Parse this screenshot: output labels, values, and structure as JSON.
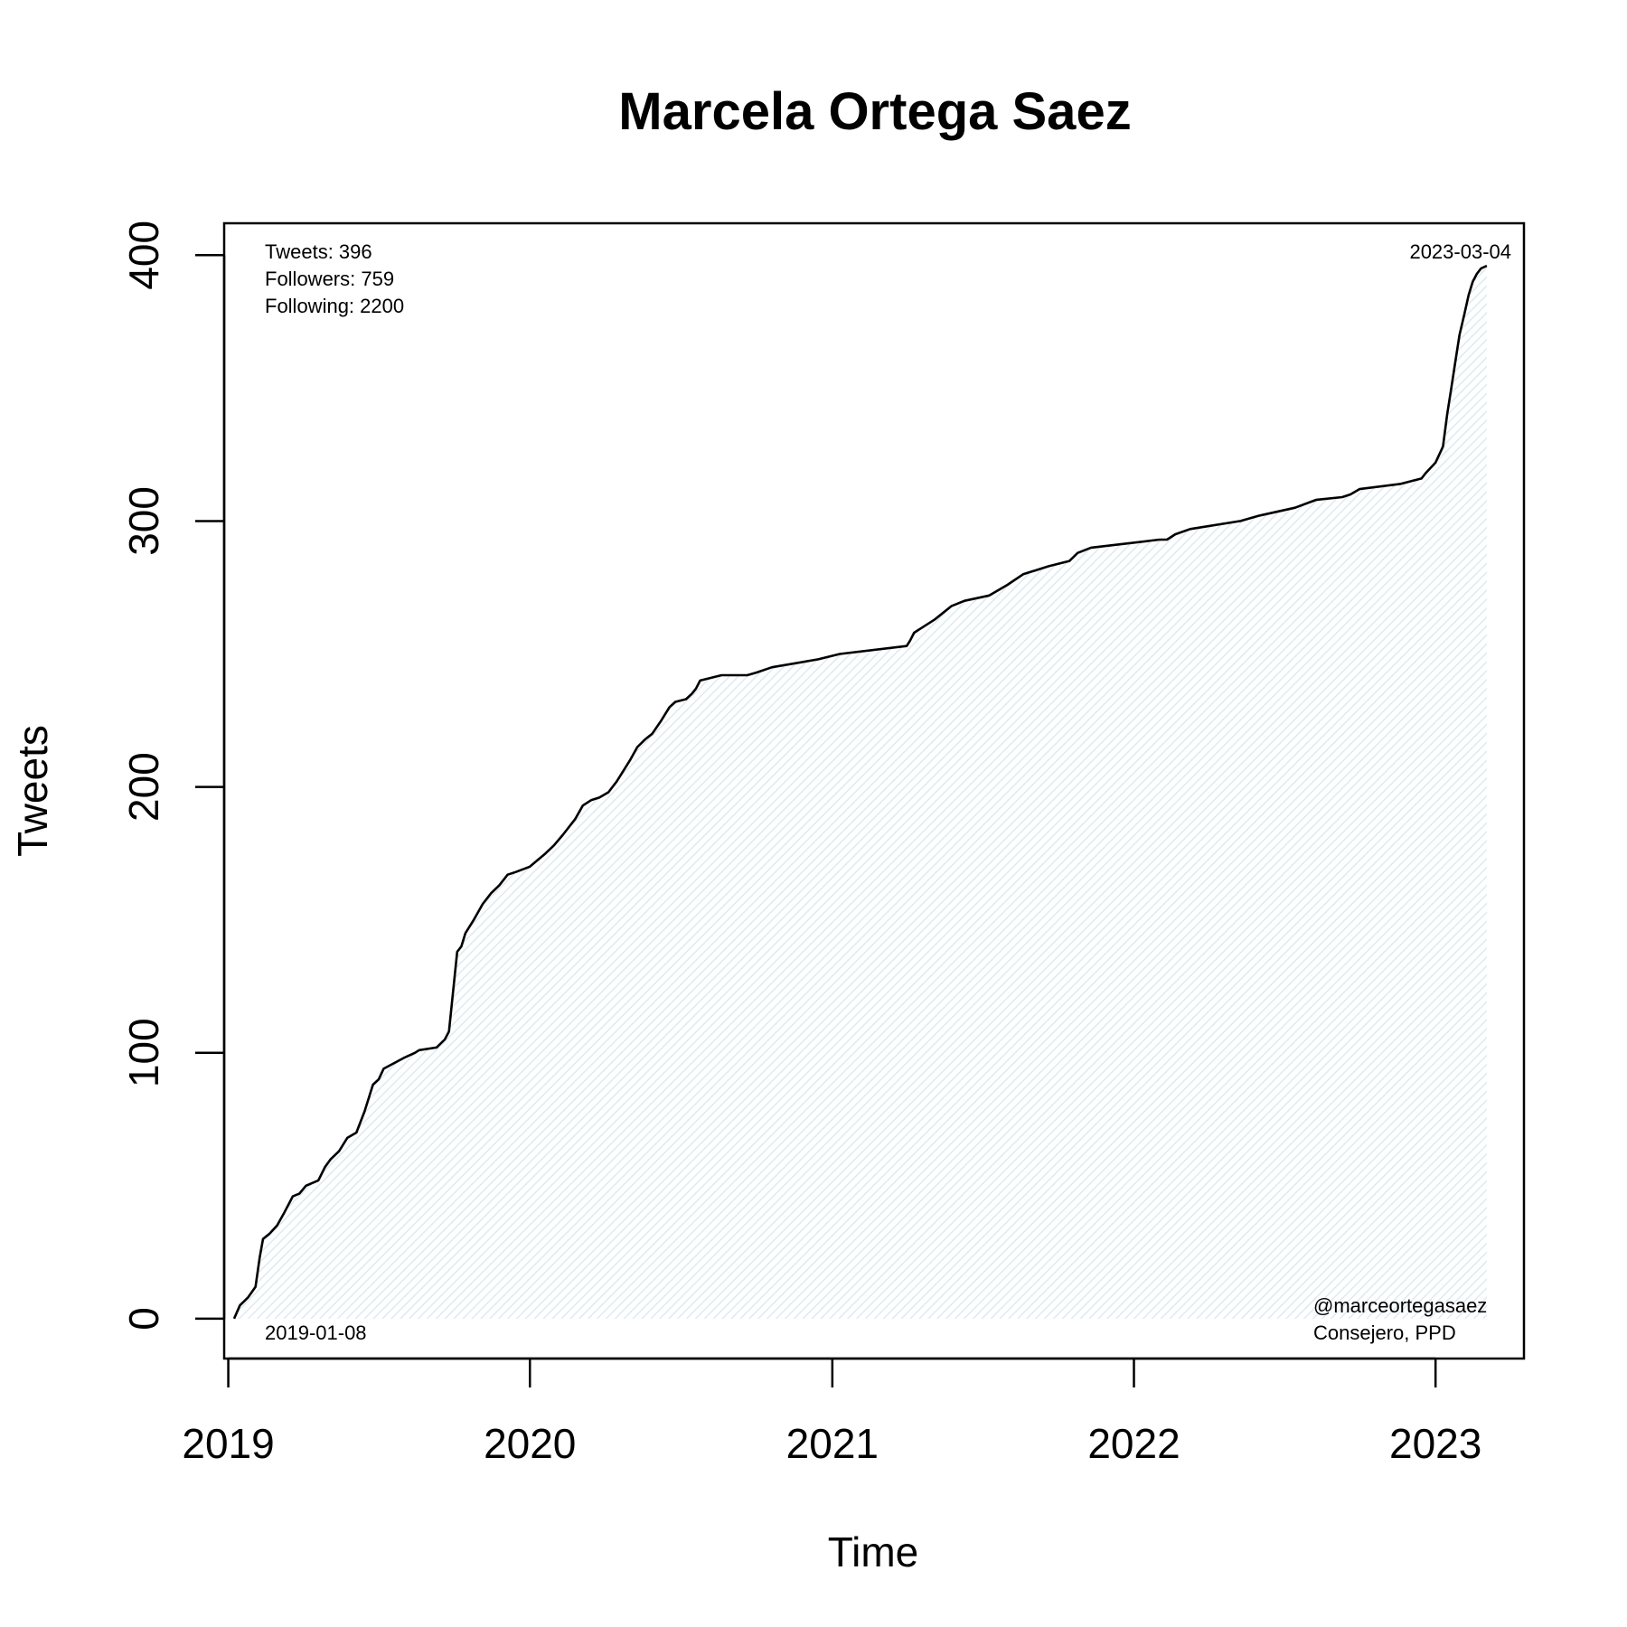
{
  "chart_data": {
    "type": "area",
    "title": "Marcela Ortega Saez",
    "xlabel": "Time",
    "ylabel": "Tweets",
    "x_ticks": [
      "2019",
      "2020",
      "2021",
      "2022",
      "2023"
    ],
    "y_ticks": [
      0,
      100,
      200,
      300,
      400
    ],
    "xlim": [
      "2018-12-27",
      "2023-04-18"
    ],
    "ylim": [
      -15,
      412
    ],
    "grid": false,
    "fill_color": "#dcebf2",
    "line_color": "#000000",
    "annotations": {
      "stats": [
        "Tweets: 396",
        "Followers: 759",
        "Following: 2200"
      ],
      "start_date": "2019-01-08",
      "end_date": "2023-03-04",
      "handle": "@marceortegasaez",
      "role": "Consejero, PPD"
    },
    "series": [
      {
        "x": [
          "2019-01-08",
          "2019-01-15",
          "2019-01-25",
          "2019-02-03",
          "2019-02-08",
          "2019-02-12",
          "2019-02-20",
          "2019-03-01",
          "2019-03-10",
          "2019-03-20",
          "2019-03-28",
          "2019-04-05",
          "2019-04-20",
          "2019-04-28",
          "2019-05-05",
          "2019-05-15",
          "2019-05-25",
          "2019-06-05",
          "2019-06-15",
          "2019-06-25",
          "2019-07-02",
          "2019-07-08",
          "2019-07-20",
          "2019-08-01",
          "2019-08-15",
          "2019-08-20",
          "2019-09-10",
          "2019-09-20",
          "2019-09-25",
          "2019-10-05",
          "2019-10-10",
          "2019-10-15",
          "2019-10-25",
          "2019-11-05",
          "2019-11-15",
          "2019-11-25",
          "2019-12-05",
          "2019-12-15",
          "2020-01-01",
          "2020-01-20",
          "2020-01-30",
          "2020-02-10",
          "2020-02-25",
          "2020-03-05",
          "2020-03-15",
          "2020-03-25",
          "2020-04-05",
          "2020-04-15",
          "2020-05-01",
          "2020-05-10",
          "2020-05-20",
          "2020-05-28",
          "2020-06-08",
          "2020-06-18",
          "2020-06-25",
          "2020-07-08",
          "2020-07-15",
          "2020-07-20",
          "2020-07-25",
          "2020-08-20",
          "2020-09-20",
          "2020-10-01",
          "2020-10-20",
          "2020-12-15",
          "2021-01-10",
          "2021-04-01",
          "2021-04-05",
          "2021-04-10",
          "2021-05-05",
          "2021-05-25",
          "2021-06-10",
          "2021-07-10",
          "2021-08-01",
          "2021-08-20",
          "2021-09-20",
          "2021-10-15",
          "2021-10-25",
          "2021-11-10",
          "2022-02-01",
          "2022-02-10",
          "2022-02-20",
          "2022-03-10",
          "2022-05-10",
          "2022-06-01",
          "2022-07-15",
          "2022-08-01",
          "2022-08-10",
          "2022-09-10",
          "2022-09-20",
          "2022-10-01",
          "2022-11-20",
          "2022-12-15",
          "2022-12-20",
          "2023-01-01",
          "2023-01-10",
          "2023-01-15",
          "2023-01-20",
          "2023-01-25",
          "2023-01-30",
          "2023-02-05",
          "2023-02-10",
          "2023-02-15",
          "2023-02-20",
          "2023-02-25",
          "2023-03-04"
        ],
        "y": [
          0,
          5,
          8,
          12,
          23,
          30,
          32,
          35,
          40,
          46,
          47,
          50,
          52,
          57,
          60,
          63,
          68,
          70,
          78,
          88,
          90,
          94,
          96,
          98,
          100,
          101,
          102,
          105,
          108,
          138,
          140,
          145,
          150,
          156,
          160,
          163,
          167,
          168,
          170,
          175,
          178,
          182,
          188,
          193,
          195,
          196,
          198,
          202,
          210,
          215,
          218,
          220,
          225,
          230,
          232,
          233,
          235,
          237,
          240,
          242,
          242,
          243,
          245,
          248,
          250,
          253,
          255,
          258,
          263,
          268,
          270,
          272,
          276,
          280,
          283,
          285,
          288,
          290,
          293,
          293,
          295,
          297,
          300,
          302,
          305,
          307,
          308,
          309,
          310,
          312,
          314,
          316,
          318,
          322,
          328,
          340,
          350,
          360,
          370,
          378,
          385,
          390,
          393,
          395,
          396
        ]
      }
    ]
  }
}
